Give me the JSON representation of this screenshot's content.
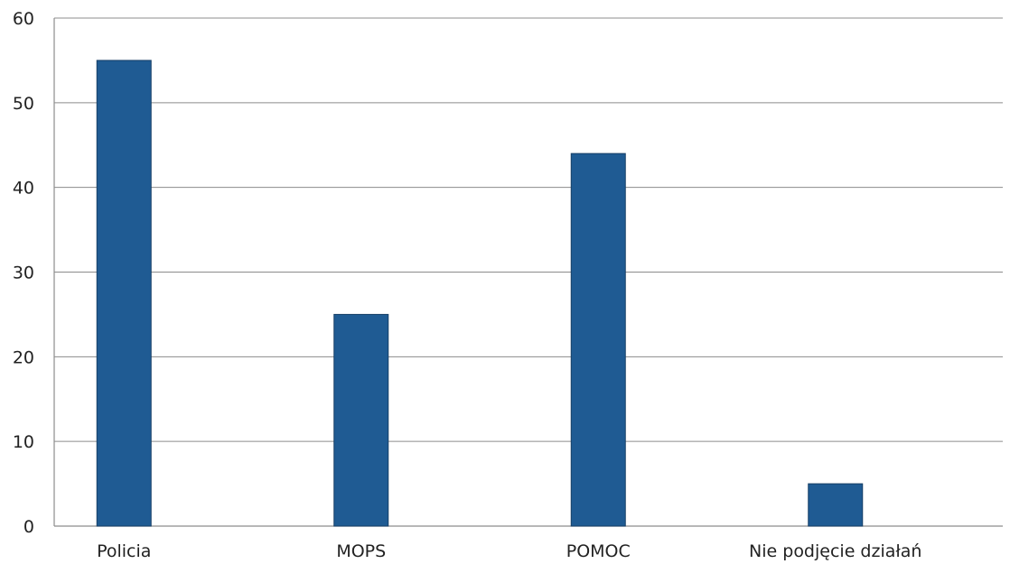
{
  "chart_data": {
    "type": "bar",
    "title": "",
    "xlabel": "",
    "ylabel": "",
    "categories": [
      "Policia",
      "MOPS",
      "POMOC",
      "Nie podjęcie działań"
    ],
    "values": [
      55,
      25,
      44,
      5
    ],
    "ylim": [
      0,
      60
    ],
    "yticks": [
      0,
      10,
      20,
      30,
      40,
      50,
      60
    ],
    "grid": true,
    "legend": "none",
    "bar_color": "#1f5b93",
    "bar_edge_color": "#163f66"
  }
}
